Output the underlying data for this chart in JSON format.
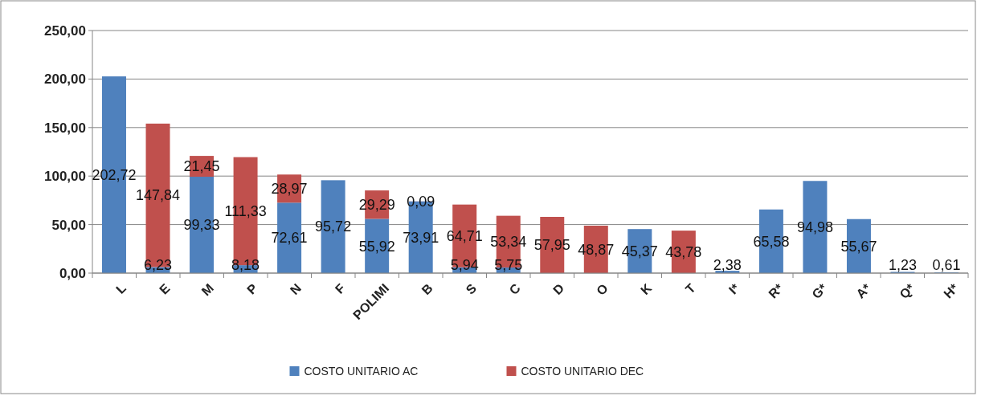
{
  "chart_data": {
    "type": "bar",
    "stacked": true,
    "categories": [
      "L",
      "E",
      "M",
      "P",
      "N",
      "F",
      "POLIMI",
      "B",
      "S",
      "C",
      "D",
      "O",
      "K",
      "T",
      "I*",
      "R*",
      "G*",
      "A*",
      "Q*",
      "H*"
    ],
    "series": [
      {
        "name": "COSTO UNITARIO AC",
        "color": "#4f81bd",
        "values": [
          202.72,
          6.23,
          99.33,
          8.18,
          72.61,
          95.72,
          55.92,
          73.91,
          5.94,
          5.75,
          null,
          null,
          45.37,
          null,
          2.38,
          65.58,
          94.98,
          55.67,
          1.23,
          0.61
        ],
        "value_labels": [
          "202,72",
          "6,23",
          "99,33",
          "8,18",
          "72,61",
          "95,72",
          "55,92",
          "73,91",
          "5,94",
          "5,75",
          null,
          null,
          "45,37",
          null,
          "2,38",
          "65,58",
          "94,98",
          "55,67",
          "1,23",
          "0,61"
        ]
      },
      {
        "name": "COSTO UNITARIO DEC",
        "color": "#c0504d",
        "values": [
          null,
          147.84,
          21.45,
          111.33,
          28.97,
          null,
          29.29,
          0.09,
          64.71,
          53.34,
          57.95,
          48.87,
          null,
          43.78,
          null,
          null,
          null,
          null,
          null,
          null
        ],
        "value_labels": [
          null,
          "147,84",
          "21,45",
          "111,33",
          "28,97",
          null,
          "29,29",
          "0,09",
          "64,71",
          "53,34",
          "57,95",
          "48,87",
          null,
          "43,78",
          null,
          null,
          null,
          null,
          null,
          null
        ]
      }
    ],
    "ylim": [
      0,
      250
    ],
    "yticks": [
      {
        "value": 0,
        "label": "0,00"
      },
      {
        "value": 50,
        "label": "50,00"
      },
      {
        "value": 100,
        "label": "100,00"
      },
      {
        "value": 150,
        "label": "150,00"
      },
      {
        "value": 200,
        "label": "200,00"
      },
      {
        "value": 250,
        "label": "250,00"
      }
    ],
    "grid": "y",
    "legend": "bottom"
  }
}
